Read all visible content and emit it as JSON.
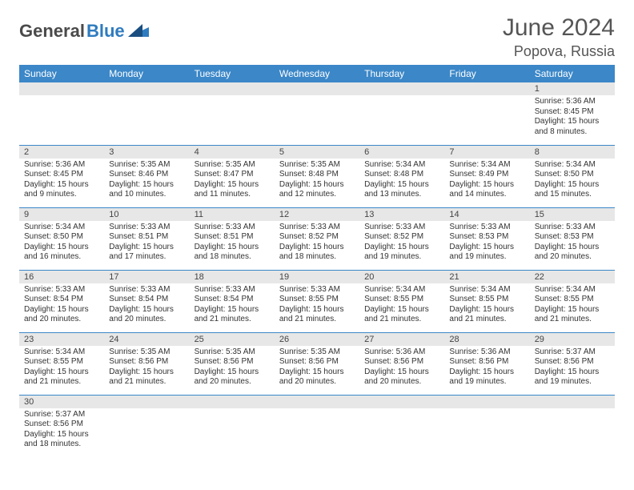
{
  "logo": {
    "text_dark": "General",
    "text_blue": "Blue"
  },
  "title": "June 2024",
  "location": "Popova, Russia",
  "day_headers": [
    "Sunday",
    "Monday",
    "Tuesday",
    "Wednesday",
    "Thursday",
    "Friday",
    "Saturday"
  ],
  "colors": {
    "header_bg": "#3b87c8",
    "header_fg": "#ffffff",
    "daynum_bg": "#e7e7e7",
    "cell_border": "#3b87c8",
    "logo_blue": "#2f7bbf",
    "logo_dark": "#4a4a4a"
  },
  "weeks": [
    [
      null,
      null,
      null,
      null,
      null,
      null,
      {
        "d": "1",
        "sr": "Sunrise: 5:36 AM",
        "ss": "Sunset: 8:45 PM",
        "dl": "Daylight: 15 hours and 8 minutes."
      }
    ],
    [
      {
        "d": "2",
        "sr": "Sunrise: 5:36 AM",
        "ss": "Sunset: 8:45 PM",
        "dl": "Daylight: 15 hours and 9 minutes."
      },
      {
        "d": "3",
        "sr": "Sunrise: 5:35 AM",
        "ss": "Sunset: 8:46 PM",
        "dl": "Daylight: 15 hours and 10 minutes."
      },
      {
        "d": "4",
        "sr": "Sunrise: 5:35 AM",
        "ss": "Sunset: 8:47 PM",
        "dl": "Daylight: 15 hours and 11 minutes."
      },
      {
        "d": "5",
        "sr": "Sunrise: 5:35 AM",
        "ss": "Sunset: 8:48 PM",
        "dl": "Daylight: 15 hours and 12 minutes."
      },
      {
        "d": "6",
        "sr": "Sunrise: 5:34 AM",
        "ss": "Sunset: 8:48 PM",
        "dl": "Daylight: 15 hours and 13 minutes."
      },
      {
        "d": "7",
        "sr": "Sunrise: 5:34 AM",
        "ss": "Sunset: 8:49 PM",
        "dl": "Daylight: 15 hours and 14 minutes."
      },
      {
        "d": "8",
        "sr": "Sunrise: 5:34 AM",
        "ss": "Sunset: 8:50 PM",
        "dl": "Daylight: 15 hours and 15 minutes."
      }
    ],
    [
      {
        "d": "9",
        "sr": "Sunrise: 5:34 AM",
        "ss": "Sunset: 8:50 PM",
        "dl": "Daylight: 15 hours and 16 minutes."
      },
      {
        "d": "10",
        "sr": "Sunrise: 5:33 AM",
        "ss": "Sunset: 8:51 PM",
        "dl": "Daylight: 15 hours and 17 minutes."
      },
      {
        "d": "11",
        "sr": "Sunrise: 5:33 AM",
        "ss": "Sunset: 8:51 PM",
        "dl": "Daylight: 15 hours and 18 minutes."
      },
      {
        "d": "12",
        "sr": "Sunrise: 5:33 AM",
        "ss": "Sunset: 8:52 PM",
        "dl": "Daylight: 15 hours and 18 minutes."
      },
      {
        "d": "13",
        "sr": "Sunrise: 5:33 AM",
        "ss": "Sunset: 8:52 PM",
        "dl": "Daylight: 15 hours and 19 minutes."
      },
      {
        "d": "14",
        "sr": "Sunrise: 5:33 AM",
        "ss": "Sunset: 8:53 PM",
        "dl": "Daylight: 15 hours and 19 minutes."
      },
      {
        "d": "15",
        "sr": "Sunrise: 5:33 AM",
        "ss": "Sunset: 8:53 PM",
        "dl": "Daylight: 15 hours and 20 minutes."
      }
    ],
    [
      {
        "d": "16",
        "sr": "Sunrise: 5:33 AM",
        "ss": "Sunset: 8:54 PM",
        "dl": "Daylight: 15 hours and 20 minutes."
      },
      {
        "d": "17",
        "sr": "Sunrise: 5:33 AM",
        "ss": "Sunset: 8:54 PM",
        "dl": "Daylight: 15 hours and 20 minutes."
      },
      {
        "d": "18",
        "sr": "Sunrise: 5:33 AM",
        "ss": "Sunset: 8:54 PM",
        "dl": "Daylight: 15 hours and 21 minutes."
      },
      {
        "d": "19",
        "sr": "Sunrise: 5:33 AM",
        "ss": "Sunset: 8:55 PM",
        "dl": "Daylight: 15 hours and 21 minutes."
      },
      {
        "d": "20",
        "sr": "Sunrise: 5:34 AM",
        "ss": "Sunset: 8:55 PM",
        "dl": "Daylight: 15 hours and 21 minutes."
      },
      {
        "d": "21",
        "sr": "Sunrise: 5:34 AM",
        "ss": "Sunset: 8:55 PM",
        "dl": "Daylight: 15 hours and 21 minutes."
      },
      {
        "d": "22",
        "sr": "Sunrise: 5:34 AM",
        "ss": "Sunset: 8:55 PM",
        "dl": "Daylight: 15 hours and 21 minutes."
      }
    ],
    [
      {
        "d": "23",
        "sr": "Sunrise: 5:34 AM",
        "ss": "Sunset: 8:55 PM",
        "dl": "Daylight: 15 hours and 21 minutes."
      },
      {
        "d": "24",
        "sr": "Sunrise: 5:35 AM",
        "ss": "Sunset: 8:56 PM",
        "dl": "Daylight: 15 hours and 21 minutes."
      },
      {
        "d": "25",
        "sr": "Sunrise: 5:35 AM",
        "ss": "Sunset: 8:56 PM",
        "dl": "Daylight: 15 hours and 20 minutes."
      },
      {
        "d": "26",
        "sr": "Sunrise: 5:35 AM",
        "ss": "Sunset: 8:56 PM",
        "dl": "Daylight: 15 hours and 20 minutes."
      },
      {
        "d": "27",
        "sr": "Sunrise: 5:36 AM",
        "ss": "Sunset: 8:56 PM",
        "dl": "Daylight: 15 hours and 20 minutes."
      },
      {
        "d": "28",
        "sr": "Sunrise: 5:36 AM",
        "ss": "Sunset: 8:56 PM",
        "dl": "Daylight: 15 hours and 19 minutes."
      },
      {
        "d": "29",
        "sr": "Sunrise: 5:37 AM",
        "ss": "Sunset: 8:56 PM",
        "dl": "Daylight: 15 hours and 19 minutes."
      }
    ],
    [
      {
        "d": "30",
        "sr": "Sunrise: 5:37 AM",
        "ss": "Sunset: 8:56 PM",
        "dl": "Daylight: 15 hours and 18 minutes."
      },
      null,
      null,
      null,
      null,
      null,
      null
    ]
  ]
}
